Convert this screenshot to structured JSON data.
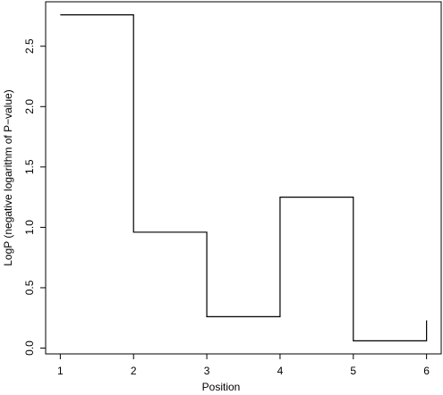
{
  "chart_data": {
    "type": "step",
    "x_label": "Position",
    "y_label": "LogP (negative logarithm of P−value)",
    "x": [
      1,
      2,
      3,
      4,
      5,
      6
    ],
    "values": [
      2.76,
      0.96,
      0.26,
      1.25,
      0.06,
      0.23
    ],
    "color": "#000000",
    "xlim": [
      0.8,
      6.2
    ],
    "xticks": [
      1,
      2,
      3,
      4,
      5,
      6
    ],
    "ylim": [
      -0.048,
      2.868
    ],
    "yticks": [
      {
        "value": 0,
        "label": "0.0"
      },
      0.5,
      {
        "value": 1,
        "label": "1.0"
      },
      1.5,
      {
        "value": 2,
        "label": "2.0"
      },
      2.5
    ]
  }
}
